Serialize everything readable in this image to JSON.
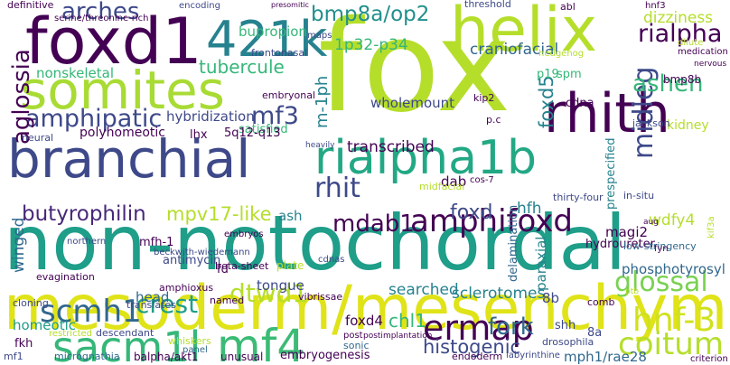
{
  "words": [
    {
      "text": "fox",
      "color": "#b5de2b"
    },
    {
      "text": "non-notochordal",
      "color": "#1f9e89"
    },
    {
      "text": "mesoderm/mesenchyme",
      "color": "#dfe318"
    },
    {
      "text": "branchial",
      "color": "#3e4989"
    },
    {
      "text": "somites",
      "color": "#a8db34"
    },
    {
      "text": "foxd1",
      "color": "#440154"
    },
    {
      "text": "421k",
      "color": "#26828e"
    },
    {
      "text": "helix",
      "color": "#b5de2b"
    },
    {
      "text": "rhith",
      "color": "#440154"
    },
    {
      "text": "rialpha1b",
      "color": "#22a884"
    },
    {
      "text": "sacm1l",
      "color": "#35b779"
    },
    {
      "text": "mf4",
      "color": "#3bbb75"
    },
    {
      "text": "ermap",
      "color": "#440154"
    },
    {
      "text": "amphifoxd",
      "color": "#440154"
    },
    {
      "text": "hnf-3",
      "color": "#d0e11c"
    },
    {
      "text": "coitum",
      "color": "#b5de2b"
    },
    {
      "text": "scmh1",
      "color": "#31688e"
    },
    {
      "text": "crest",
      "color": "#1f9e89"
    },
    {
      "text": "dtwd1",
      "color": "#b5de2b"
    },
    {
      "text": "glossal",
      "color": "#7ad151"
    },
    {
      "text": "midleg",
      "color": "#3e4989"
    },
    {
      "text": "rialpha",
      "color": "#440154"
    },
    {
      "text": "ashen",
      "color": "#35b779"
    },
    {
      "text": "amphipatic",
      "color": "#3e4989"
    },
    {
      "text": "arches",
      "color": "#3e4989"
    },
    {
      "text": "bmp8a/op2",
      "color": "#21908d"
    },
    {
      "text": "aglossia",
      "color": "#440154"
    },
    {
      "text": "tubercule",
      "color": "#35b779"
    },
    {
      "text": "mf3",
      "color": "#3e4989"
    },
    {
      "text": "rhit",
      "color": "#3e4989"
    },
    {
      "text": "transcribed",
      "color": "#440154"
    },
    {
      "text": "mdab1",
      "color": "#440154"
    },
    {
      "text": "mpv17-like",
      "color": "#b5de2b"
    },
    {
      "text": "butyrophilin",
      "color": "#482878"
    },
    {
      "text": "foxd",
      "color": "#3e4989"
    },
    {
      "text": "fork",
      "color": "#31688e"
    },
    {
      "text": "histogenic",
      "color": "#3e4989"
    },
    {
      "text": "mph1/rae28",
      "color": "#31688e"
    },
    {
      "text": "chl1",
      "color": "#35b779"
    },
    {
      "text": "foxd4",
      "color": "#440154"
    },
    {
      "text": "wholemount",
      "color": "#3e4989"
    },
    {
      "text": "satisfied",
      "color": "#35b779"
    },
    {
      "text": "1p32-p34",
      "color": "#35b779"
    },
    {
      "text": "bupropion",
      "color": "#35b779"
    },
    {
      "text": "dizziness",
      "color": "#b5de2b"
    },
    {
      "text": "craniofacial",
      "color": "#31688e"
    },
    {
      "text": "nonskeletal",
      "color": "#35b779"
    },
    {
      "text": "hybridization",
      "color": "#3e4989"
    },
    {
      "text": "foxd5",
      "color": "#26828e"
    },
    {
      "text": "m-1ph",
      "color": "#26828e"
    },
    {
      "text": "wdfy4",
      "color": "#b5de2b"
    },
    {
      "text": "hfh",
      "color": "#26828e"
    },
    {
      "text": "ash",
      "color": "#26828e"
    },
    {
      "text": "searched",
      "color": "#26828e"
    },
    {
      "text": "sclerotomes",
      "color": "#26828e"
    },
    {
      "text": "paraxial",
      "color": "#26828e"
    },
    {
      "text": "delamination",
      "color": "#31688e"
    },
    {
      "text": "phosphotyrosyl",
      "color": "#31688e"
    },
    {
      "text": "8b",
      "color": "#3e4989"
    },
    {
      "text": "shh",
      "color": "#3e4989"
    },
    {
      "text": "8a",
      "color": "#3e4989"
    },
    {
      "text": "tongue",
      "color": "#3e4989"
    },
    {
      "text": "homeotic",
      "color": "#1f9e89"
    },
    {
      "text": "head",
      "color": "#31688e"
    },
    {
      "text": "winged",
      "color": "#31688e"
    },
    {
      "text": "beta-sheet",
      "color": "#440154"
    },
    {
      "text": "antimycin",
      "color": "#3e4989"
    },
    {
      "text": "mfh-1",
      "color": "#440154"
    },
    {
      "text": "polyhomeotic",
      "color": "#440154"
    },
    {
      "text": "lhx",
      "color": "#440154"
    },
    {
      "text": "5q12-q13",
      "color": "#440154"
    },
    {
      "text": "magi2",
      "color": "#440154"
    },
    {
      "text": "hydroureter",
      "color": "#440154"
    },
    {
      "text": "low-stringency",
      "color": "#31688e"
    },
    {
      "text": "kidney",
      "color": "#b5de2b"
    },
    {
      "text": "jackson",
      "color": "#3e4989"
    },
    {
      "text": "prespecified",
      "color": "#26828e"
    },
    {
      "text": "thirty-four",
      "color": "#3e4989"
    },
    {
      "text": "in-situ",
      "color": "#3e4989"
    },
    {
      "text": "cdna",
      "color": "#440154"
    },
    {
      "text": "p19",
      "color": "#35b779"
    },
    {
      "text": "spm",
      "color": "#35b779"
    },
    {
      "text": "bmp8b",
      "color": "#440154"
    },
    {
      "text": "dab",
      "color": "#440154"
    },
    {
      "text": "fd",
      "color": "#440154"
    },
    {
      "text": "plate",
      "color": "#b5de2b"
    },
    {
      "text": "vibrissae",
      "color": "#440154"
    },
    {
      "text": "named",
      "color": "#440154"
    },
    {
      "text": "amphioxus",
      "color": "#440154"
    },
    {
      "text": "translates",
      "color": "#3e4989"
    },
    {
      "text": "cloning",
      "color": "#3e4989"
    },
    {
      "text": "evagination",
      "color": "#440154"
    },
    {
      "text": "descendant",
      "color": "#3e4989"
    },
    {
      "text": "restricted",
      "color": "#b5de2b"
    },
    {
      "text": "fkh",
      "color": "#440154"
    },
    {
      "text": "mf1",
      "color": "#3e4989"
    },
    {
      "text": "micrognathia",
      "color": "#31688e"
    },
    {
      "text": "balpha/akt1",
      "color": "#440154"
    },
    {
      "text": "unusual",
      "color": "#440154"
    },
    {
      "text": "embryogenesis",
      "color": "#440154"
    },
    {
      "text": "endoderm",
      "color": "#440154"
    },
    {
      "text": "labyrinthine",
      "color": "#3e4989"
    },
    {
      "text": "drosophila",
      "color": "#3e4989"
    },
    {
      "text": "whiskers",
      "color": "#b5de2b"
    },
    {
      "text": "panel",
      "color": "#31688e"
    },
    {
      "text": "sonic",
      "color": "#31688e"
    },
    {
      "text": "post",
      "color": "#440154"
    },
    {
      "text": "postimplantation",
      "color": "#440154"
    },
    {
      "text": "definitive",
      "color": "#440154"
    },
    {
      "text": "serine/threonine-rich",
      "color": "#440154"
    },
    {
      "text": "encoding",
      "color": "#3e4989"
    },
    {
      "text": "threshold",
      "color": "#3e4989"
    },
    {
      "text": "abl",
      "color": "#440154"
    },
    {
      "text": "hnf3",
      "color": "#440154"
    },
    {
      "text": "presomitic",
      "color": "#440154"
    },
    {
      "text": "maps",
      "color": "#3e4989"
    },
    {
      "text": "frontonasal",
      "color": "#3e4989"
    },
    {
      "text": "embryonal",
      "color": "#440154"
    },
    {
      "text": "medication",
      "color": "#440154"
    },
    {
      "text": "nervous",
      "color": "#440154"
    },
    {
      "text": "dilute",
      "color": "#b5de2b"
    },
    {
      "text": "hedgehog",
      "color": "#b5de2b"
    },
    {
      "text": "neural",
      "color": "#3e4989"
    },
    {
      "text": "kip2",
      "color": "#440154"
    },
    {
      "text": "p.c",
      "color": "#440154"
    },
    {
      "text": "cos-7",
      "color": "#440154"
    },
    {
      "text": "midfacial",
      "color": "#b5de2b"
    },
    {
      "text": "heavily",
      "color": "#3e4989"
    },
    {
      "text": "northern",
      "color": "#3e4989"
    },
    {
      "text": "beckwith-wiedemann",
      "color": "#3e4989"
    },
    {
      "text": "embryos",
      "color": "#440154"
    },
    {
      "text": "cdnas",
      "color": "#3e4989"
    },
    {
      "text": "comb",
      "color": "#440154"
    },
    {
      "text": "aug",
      "color": "#440154"
    },
    {
      "text": "fyn",
      "color": "#440154"
    },
    {
      "text": "ptb",
      "color": "#b5de2b"
    },
    {
      "text": "kif3a",
      "color": "#b5de2b"
    },
    {
      "text": "criterion",
      "color": "#440154"
    }
  ]
}
